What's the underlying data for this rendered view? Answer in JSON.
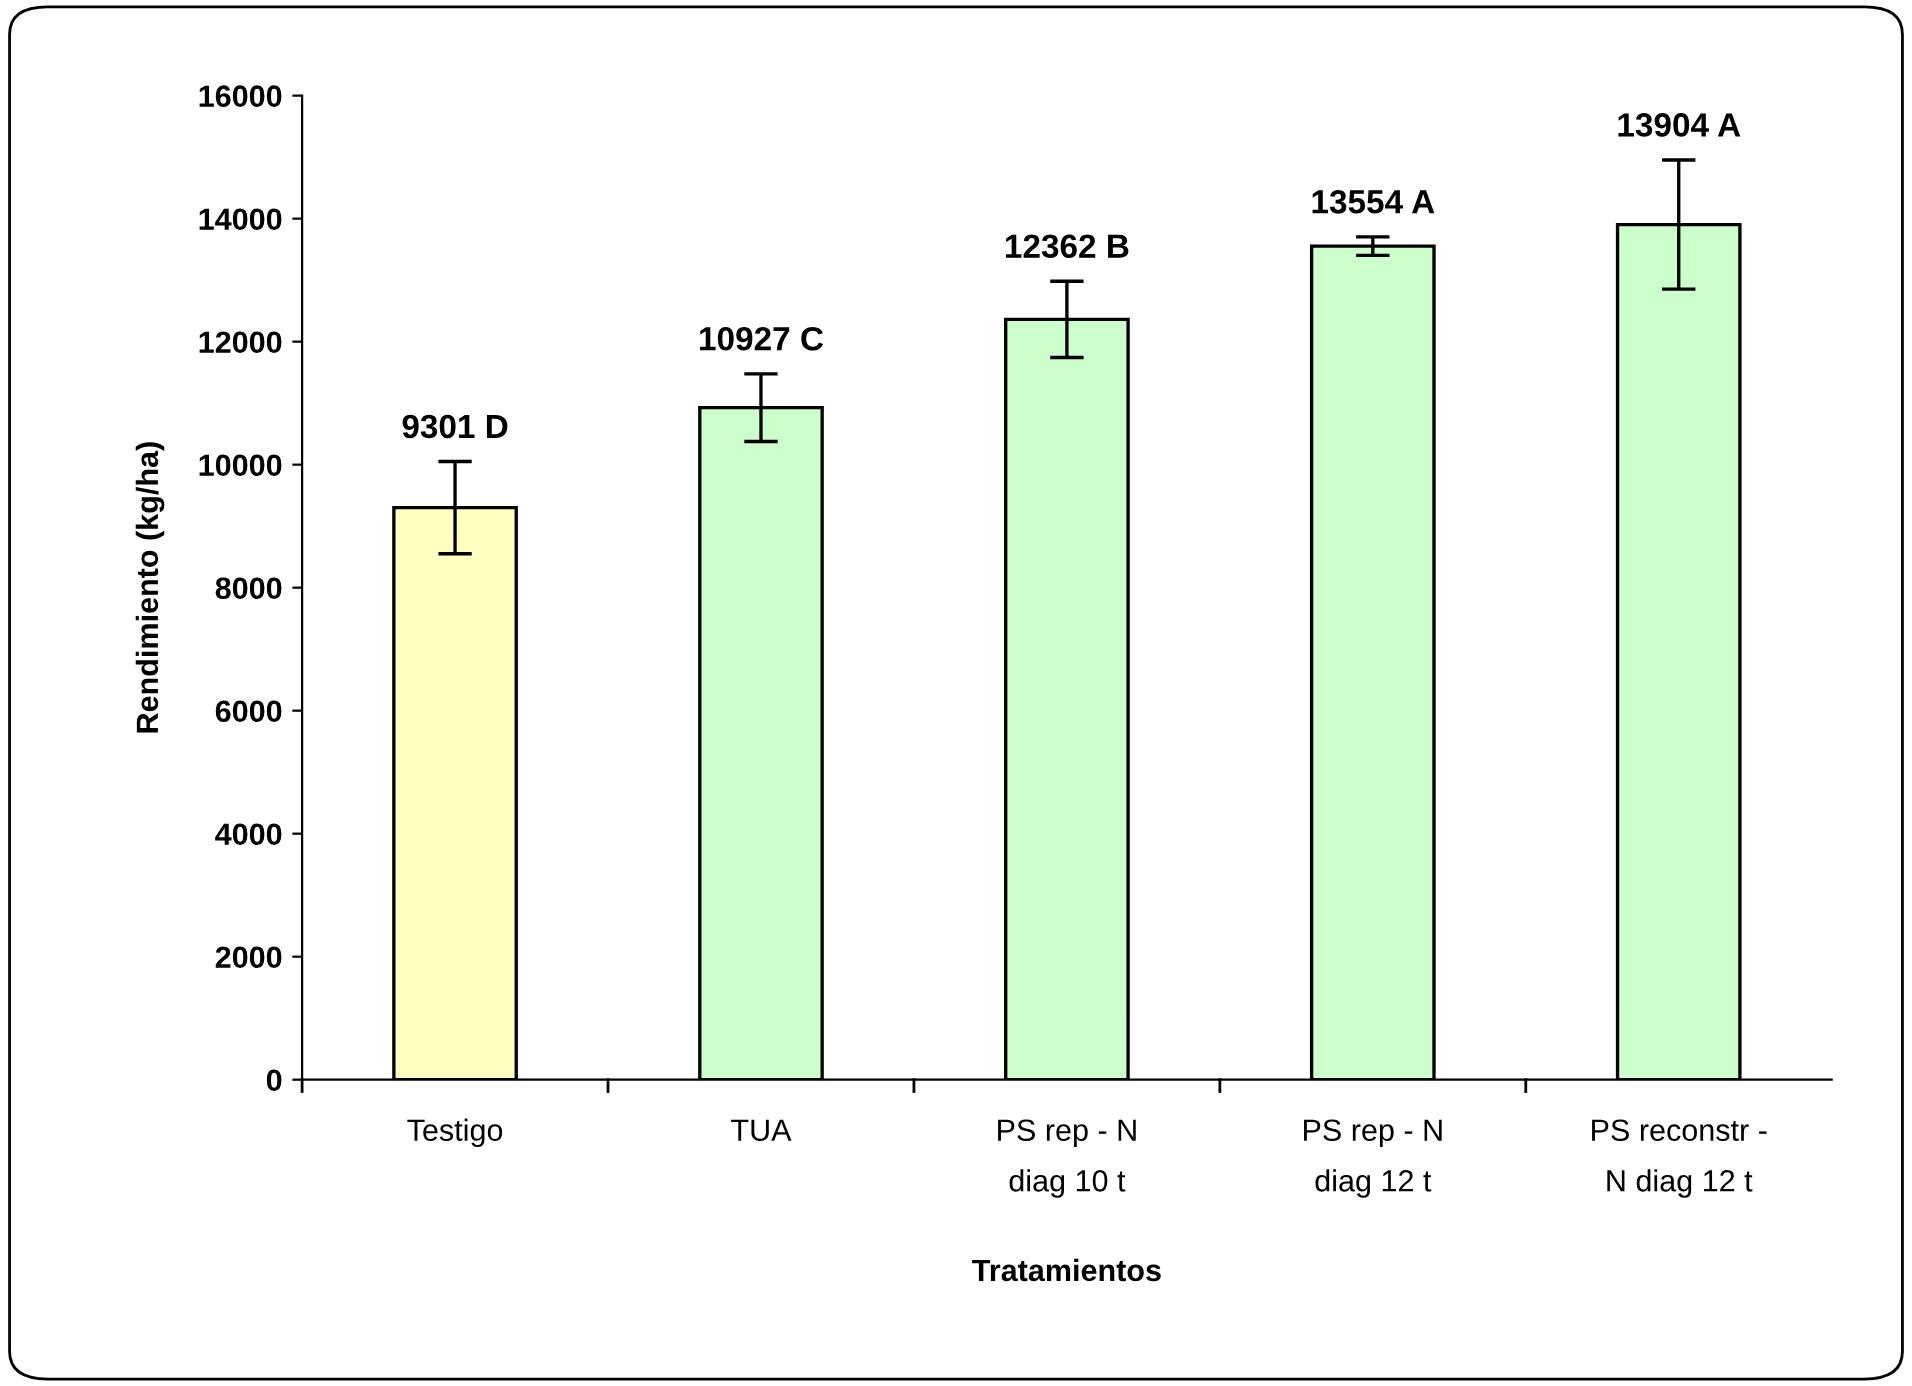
{
  "chart_data": {
    "type": "bar",
    "xlabel": "Tratamientos",
    "ylabel": "Rendimiento (kg/ha)",
    "categories": [
      "Testigo",
      "TUA",
      "PS rep - N\ndiag 10 t",
      "PS rep - N\ndiag 12 t",
      "PS reconstr -\nN diag 12 t"
    ],
    "values": [
      9301,
      10927,
      12362,
      13554,
      13904
    ],
    "colors": [
      "#ffffc0",
      "#ccffcc",
      "#ccffcc",
      "#ccffcc",
      "#ccffcc"
    ],
    "errors": [
      750,
      550,
      620,
      150,
      1050
    ],
    "value_labels": [
      "9301 D",
      "10927 C",
      "12362 B",
      "13554 A",
      "13904 A"
    ],
    "ylim": [
      0,
      16000
    ],
    "yticks": [
      0,
      2000,
      4000,
      6000,
      8000,
      10000,
      12000,
      14000,
      16000
    ],
    "grid": false,
    "legend": false
  }
}
